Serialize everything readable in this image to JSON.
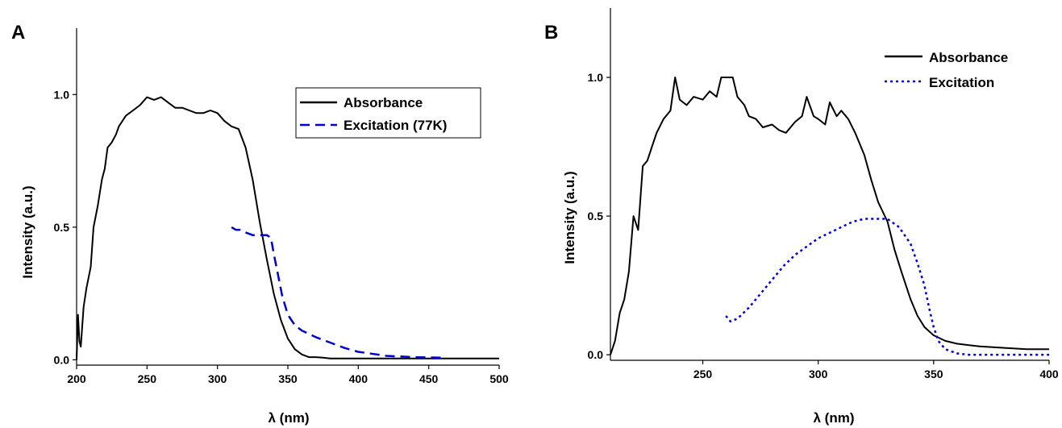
{
  "chart_data": [
    {
      "type": "line",
      "panel_label": "A",
      "xlabel": "λ (nm)",
      "ylabel": "Intensity (a.u.)",
      "xlim": [
        200,
        500
      ],
      "ylim": [
        -0.02,
        1.25
      ],
      "xticks": [
        "200",
        "250",
        "300",
        "350",
        "400",
        "450",
        "500"
      ],
      "yticks": [
        "0.0",
        "0.5",
        "1.0"
      ],
      "legend_position": "top-right",
      "series": [
        {
          "name": "Absorbance",
          "color": "#000000",
          "style": "solid",
          "x": [
            200,
            201,
            202,
            203,
            205,
            207,
            210,
            212,
            215,
            218,
            220,
            222,
            225,
            228,
            230,
            235,
            240,
            245,
            250,
            255,
            260,
            265,
            270,
            275,
            280,
            285,
            290,
            295,
            300,
            305,
            310,
            315,
            320,
            325,
            330,
            335,
            340,
            345,
            350,
            355,
            360,
            365,
            370,
            375,
            380,
            400,
            450,
            500
          ],
          "y": [
            0.0,
            0.17,
            0.07,
            0.05,
            0.2,
            0.27,
            0.35,
            0.5,
            0.58,
            0.68,
            0.72,
            0.8,
            0.82,
            0.85,
            0.88,
            0.92,
            0.94,
            0.96,
            0.99,
            0.98,
            0.99,
            0.97,
            0.95,
            0.95,
            0.94,
            0.93,
            0.93,
            0.94,
            0.93,
            0.9,
            0.88,
            0.87,
            0.8,
            0.68,
            0.52,
            0.38,
            0.25,
            0.15,
            0.08,
            0.04,
            0.02,
            0.01,
            0.01,
            0.008,
            0.005,
            0.005,
            0.005,
            0.005
          ]
        },
        {
          "name": "Excitation (77K)",
          "color": "#0000cc",
          "style": "dashed",
          "x": [
            310,
            313,
            316,
            320,
            325,
            330,
            335,
            338,
            340,
            343,
            346,
            350,
            355,
            360,
            370,
            380,
            390,
            400,
            420,
            440,
            460
          ],
          "y": [
            0.5,
            0.49,
            0.49,
            0.48,
            0.47,
            0.47,
            0.47,
            0.46,
            0.4,
            0.32,
            0.24,
            0.17,
            0.13,
            0.11,
            0.085,
            0.065,
            0.045,
            0.03,
            0.015,
            0.01,
            0.008
          ]
        }
      ]
    },
    {
      "type": "line",
      "panel_label": "B",
      "xlabel": "λ (nm)",
      "ylabel": "Intensity (a.u.)",
      "xlim": [
        210,
        400
      ],
      "ylim": [
        -0.02,
        1.25
      ],
      "xticks": [
        "250",
        "300",
        "350",
        "400"
      ],
      "yticks": [
        "0.0",
        "0.5",
        "1.0"
      ],
      "legend_position": "top-right",
      "series": [
        {
          "name": "Absorbance",
          "color": "#000000",
          "style": "solid",
          "x": [
            210,
            212,
            214,
            216,
            218,
            220,
            222,
            224,
            226,
            228,
            230,
            233,
            236,
            238,
            240,
            243,
            246,
            250,
            253,
            256,
            258,
            260,
            263,
            265,
            268,
            270,
            273,
            276,
            280,
            283,
            286,
            290,
            293,
            295,
            298,
            300,
            303,
            305,
            308,
            310,
            313,
            316,
            320,
            323,
            326,
            330,
            333,
            336,
            340,
            343,
            346,
            350,
            355,
            360,
            365,
            370,
            380,
            390,
            400
          ],
          "y": [
            0.0,
            0.05,
            0.15,
            0.2,
            0.3,
            0.5,
            0.45,
            0.68,
            0.7,
            0.75,
            0.8,
            0.85,
            0.88,
            1.0,
            0.92,
            0.9,
            0.93,
            0.92,
            0.95,
            0.93,
            1.0,
            1.0,
            1.0,
            0.93,
            0.9,
            0.86,
            0.85,
            0.82,
            0.83,
            0.81,
            0.8,
            0.84,
            0.86,
            0.93,
            0.86,
            0.85,
            0.83,
            0.91,
            0.86,
            0.88,
            0.85,
            0.8,
            0.72,
            0.63,
            0.55,
            0.48,
            0.38,
            0.3,
            0.2,
            0.14,
            0.1,
            0.07,
            0.05,
            0.04,
            0.035,
            0.03,
            0.025,
            0.02,
            0.02
          ]
        },
        {
          "name": "Excitation",
          "color": "#0000dd",
          "style": "dotted",
          "x": [
            260,
            262,
            265,
            270,
            275,
            280,
            285,
            290,
            295,
            300,
            305,
            310,
            315,
            320,
            325,
            330,
            335,
            340,
            343,
            346,
            348,
            350,
            352,
            355,
            360,
            365,
            370,
            380,
            390,
            400
          ],
          "y": [
            0.14,
            0.12,
            0.13,
            0.17,
            0.22,
            0.27,
            0.32,
            0.36,
            0.39,
            0.42,
            0.44,
            0.46,
            0.48,
            0.49,
            0.49,
            0.49,
            0.46,
            0.4,
            0.33,
            0.25,
            0.17,
            0.1,
            0.05,
            0.02,
            0.005,
            0.0,
            0.0,
            0.0,
            0.0,
            0.0
          ]
        }
      ]
    }
  ]
}
